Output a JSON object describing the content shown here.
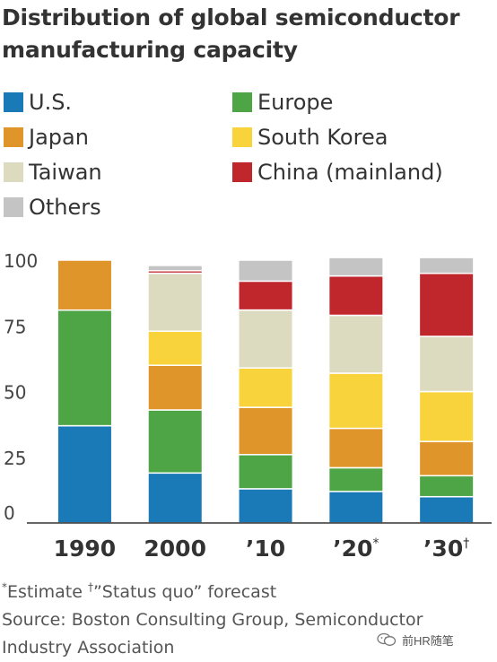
{
  "title": "Distribution of global semiconductor manufacturing capacity",
  "legend": [
    {
      "key": "us",
      "label": "U.S.",
      "color": "#1a7ab8"
    },
    {
      "key": "europe",
      "label": "Europe",
      "color": "#4ea545"
    },
    {
      "key": "japan",
      "label": "Japan",
      "color": "#e0952a"
    },
    {
      "key": "korea",
      "label": "South Korea",
      "color": "#f9d33c"
    },
    {
      "key": "taiwan",
      "label": "Taiwan",
      "color": "#dcdbc0"
    },
    {
      "key": "china",
      "label": "China (mainland)",
      "color": "#c0272d"
    },
    {
      "key": "others",
      "label": "Others",
      "color": "#c4c4c4"
    }
  ],
  "chart_data": {
    "type": "bar",
    "stacked": true,
    "categories": [
      "1990",
      "2000",
      "’10",
      "’20",
      "’30"
    ],
    "category_marks": [
      "",
      "",
      "",
      "*",
      "†"
    ],
    "series": [
      {
        "name": "U.S.",
        "values": [
          37,
          19,
          13,
          12,
          10
        ]
      },
      {
        "name": "Europe",
        "values": [
          44,
          24,
          13,
          9,
          8
        ]
      },
      {
        "name": "Japan",
        "values": [
          19,
          17,
          18,
          15,
          13
        ]
      },
      {
        "name": "South Korea",
        "values": [
          0,
          13,
          15,
          21,
          19
        ]
      },
      {
        "name": "Taiwan",
        "values": [
          0,
          22,
          22,
          22,
          21
        ]
      },
      {
        "name": "China (mainland)",
        "values": [
          0,
          1,
          11,
          15,
          24
        ]
      },
      {
        "name": "Others",
        "values": [
          0,
          2,
          8,
          7,
          6
        ]
      }
    ],
    "ylim": [
      0,
      100
    ],
    "yticks": [
      0,
      25,
      50,
      75,
      100
    ],
    "grid": false,
    "legend_position": "top"
  },
  "footnote": {
    "estimate_mark": "*",
    "estimate_text": "Estimate ",
    "forecast_mark": "†",
    "forecast_text": "”Status quo” forecast",
    "source": "Source: Boston Consulting Group, Semiconductor Industry Association"
  },
  "watermark": {
    "label": "前HR随笔",
    "icon": "wechat-icon"
  }
}
